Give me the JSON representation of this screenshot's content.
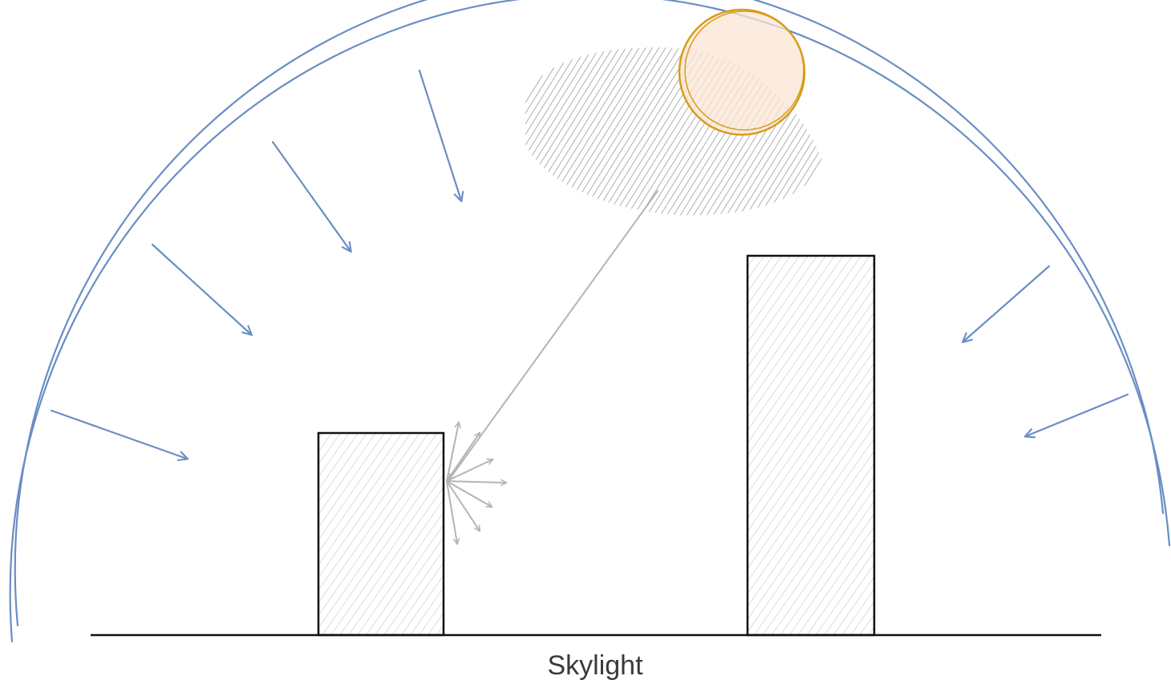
{
  "caption": "Skylight"
}
